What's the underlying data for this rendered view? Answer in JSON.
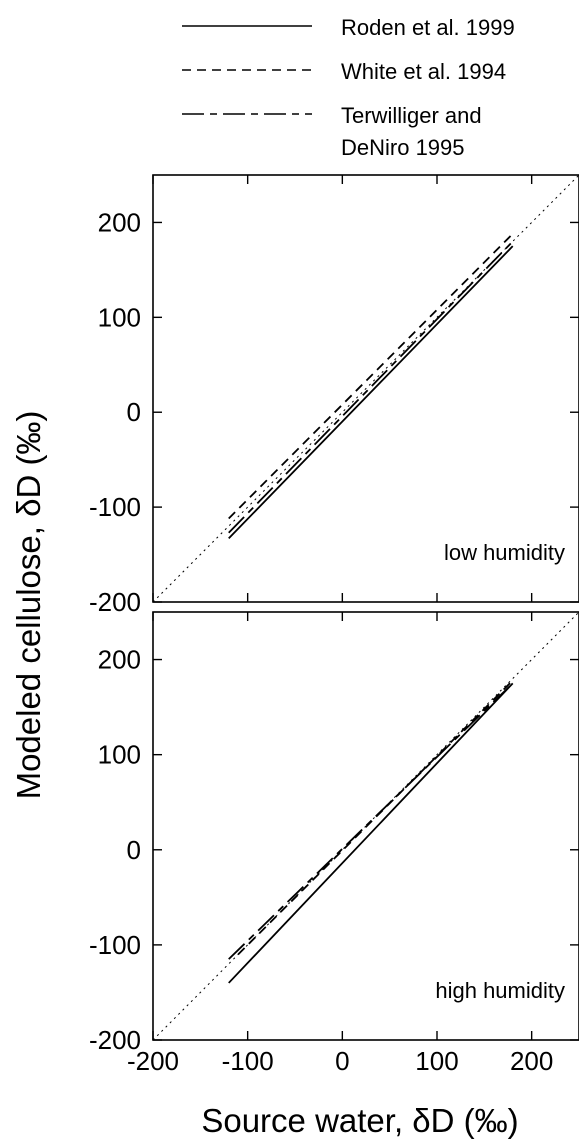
{
  "legend": {
    "entries": [
      {
        "label_lines": [
          "Roden et al. 1999"
        ],
        "style": "solid"
      },
      {
        "label_lines": [
          "White et al. 1994"
        ],
        "style": "dashed"
      },
      {
        "label_lines": [
          "Terwilliger and",
          "DeNiro 1995"
        ],
        "style": "dashdot"
      }
    ]
  },
  "axes": {
    "ylabel": "Modeled cellulose, δD (‰)",
    "xlabel": "Source water, δD (‰)"
  },
  "chart_data": [
    {
      "type": "line",
      "annotation": "low humidity",
      "xlim": [
        -200,
        250
      ],
      "ylim": [
        -200,
        250
      ],
      "x_ticks": [
        -200,
        -100,
        0,
        100,
        200
      ],
      "y_ticks": [
        -200,
        -100,
        0,
        100,
        200
      ],
      "y_tick_labels": [
        "-200",
        "-100",
        "0",
        "100",
        "200"
      ],
      "reference_line": {
        "style": "dotted",
        "x": [
          -200,
          250
        ],
        "y": [
          -200,
          250
        ]
      },
      "series": [
        {
          "name": "Roden et al. 1999",
          "style": "solid",
          "x": [
            -120,
            180
          ],
          "y": [
            -133,
            175
          ]
        },
        {
          "name": "White et al. 1994",
          "style": "dashed",
          "x": [
            -120,
            180
          ],
          "y": [
            -112,
            188
          ]
        },
        {
          "name": "Terwilliger and DeNiro 1995",
          "style": "dashdot",
          "x": [
            -120,
            180
          ],
          "y": [
            -127,
            180
          ]
        }
      ]
    },
    {
      "type": "line",
      "annotation": "high humidity",
      "xlim": [
        -200,
        250
      ],
      "ylim": [
        -200,
        250
      ],
      "x_ticks": [
        -200,
        -100,
        0,
        100,
        200
      ],
      "x_tick_labels": [
        "-200",
        "-100",
        "0",
        "100",
        "200"
      ],
      "y_ticks": [
        -200,
        -100,
        0,
        100,
        200
      ],
      "y_tick_labels": [
        "-200",
        "-100",
        "0",
        "100",
        "200"
      ],
      "reference_line": {
        "style": "dotted",
        "x": [
          -200,
          250
        ],
        "y": [
          -200,
          250
        ]
      },
      "series": [
        {
          "name": "Roden et al. 1999",
          "style": "solid",
          "x": [
            -120,
            180
          ],
          "y": [
            -140,
            175
          ]
        },
        {
          "name": "White et al. 1994",
          "style": "dashed",
          "x": [
            -110,
            180
          ],
          "y": [
            -110,
            178
          ]
        },
        {
          "name": "Terwilliger and DeNiro 1995",
          "style": "dashdot",
          "x": [
            -120,
            180
          ],
          "y": [
            -115,
            175
          ]
        }
      ]
    }
  ]
}
